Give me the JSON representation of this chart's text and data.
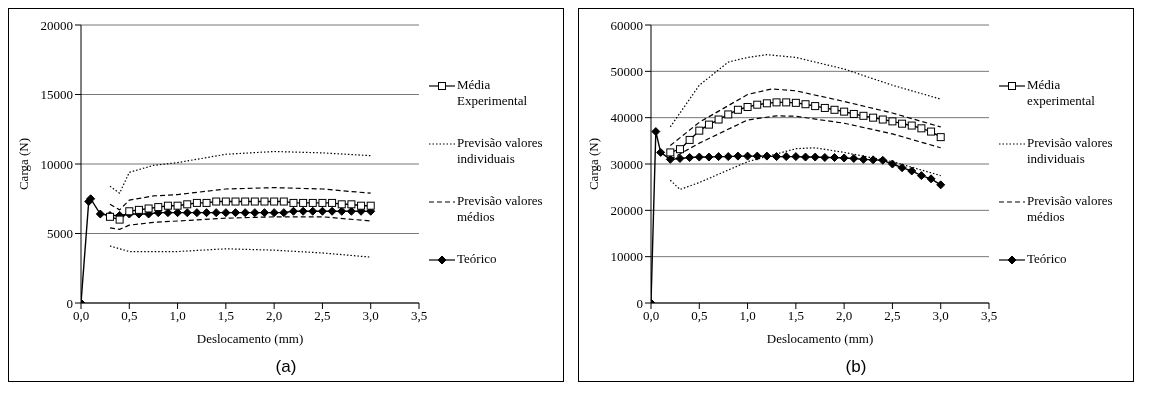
{
  "chart_data": [
    {
      "type": "line",
      "xlabel": "Deslocamento (mm)",
      "ylabel": "Carga (N)",
      "xlim": [
        0,
        3.5
      ],
      "xticks": [
        {
          "value": 0,
          "label": "0,0"
        },
        {
          "value": 0.5,
          "label": "0,5"
        },
        {
          "value": 1,
          "label": "1,0"
        },
        {
          "value": 1.5,
          "label": "1,5"
        },
        {
          "value": 2,
          "label": "2,0"
        },
        {
          "value": 2.5,
          "label": "2,5"
        },
        {
          "value": 3,
          "label": "3,0"
        },
        {
          "value": 3.5,
          "label": "3,5"
        }
      ],
      "ylim": [
        0,
        20000
      ],
      "yticks": [
        0,
        5000,
        10000,
        15000,
        20000
      ],
      "grid": "y",
      "legend": "right",
      "annotations": [
        "(a)"
      ],
      "series": [
        {
          "name": "Média Experimental",
          "color": "#000000",
          "marker": "square",
          "line_style": "solid",
          "x": [
            0.3,
            0.4,
            0.5,
            0.6,
            0.7,
            0.8,
            0.9,
            1.0,
            1.1,
            1.2,
            1.3,
            1.4,
            1.5,
            1.6,
            1.7,
            1.8,
            1.9,
            2.0,
            2.1,
            2.2,
            2.3,
            2.4,
            2.5,
            2.6,
            2.7,
            2.8,
            2.9,
            3.0
          ],
          "values": [
            6200,
            6000,
            6600,
            6700,
            6800,
            6900,
            7000,
            7000,
            7100,
            7200,
            7200,
            7300,
            7300,
            7300,
            7300,
            7300,
            7300,
            7300,
            7300,
            7200,
            7200,
            7200,
            7200,
            7200,
            7100,
            7100,
            7000,
            7000
          ]
        },
        {
          "name": "Previsão valores individuais",
          "color": "#000000",
          "marker": "none",
          "line_style": "dotted",
          "x": [
            0.3,
            0.4,
            0.5,
            0.75,
            1.0,
            1.5,
            2.0,
            2.5,
            3.0
          ],
          "values": [
            8400,
            7900,
            9400,
            9900,
            10100,
            10700,
            10900,
            10800,
            10600
          ]
        },
        {
          "color": "#000000",
          "marker": "none",
          "line_style": "dotted",
          "x": [
            0.3,
            0.4,
            0.5,
            0.75,
            1.0,
            1.5,
            2.0,
            2.5,
            3.0
          ],
          "values": [
            4100,
            3900,
            3700,
            3700,
            3700,
            3900,
            3800,
            3600,
            3300
          ]
        },
        {
          "name": "Previsão valores médios",
          "color": "#000000",
          "marker": "none",
          "line_style": "dashed",
          "x": [
            0.3,
            0.4,
            0.5,
            0.75,
            1.0,
            1.5,
            2.0,
            2.5,
            3.0
          ],
          "values": [
            7100,
            6700,
            7400,
            7700,
            7800,
            8200,
            8300,
            8200,
            7900
          ]
        },
        {
          "color": "#000000",
          "marker": "none",
          "line_style": "dashed",
          "x": [
            0.3,
            0.4,
            0.5,
            0.75,
            1.0,
            1.5,
            2.0,
            2.5,
            3.0
          ],
          "values": [
            5400,
            5300,
            5600,
            5800,
            5900,
            6100,
            6200,
            6200,
            5900
          ]
        },
        {
          "name": "Teórico",
          "color": "#000000",
          "marker": "diamond",
          "line_style": "solid",
          "x": [
            0,
            0.08,
            0.1,
            0.2,
            0.3,
            0.4,
            0.5,
            0.6,
            0.7,
            0.8,
            0.9,
            1.0,
            1.1,
            1.2,
            1.3,
            1.4,
            1.5,
            1.6,
            1.7,
            1.8,
            1.9,
            2.0,
            2.1,
            2.2,
            2.3,
            2.4,
            2.5,
            2.6,
            2.7,
            2.8,
            2.9,
            3.0
          ],
          "values": [
            0,
            7300,
            7500,
            6400,
            6300,
            6300,
            6400,
            6400,
            6400,
            6500,
            6500,
            6500,
            6500,
            6500,
            6500,
            6500,
            6500,
            6500,
            6500,
            6500,
            6500,
            6500,
            6500,
            6600,
            6600,
            6600,
            6600,
            6600,
            6600,
            6600,
            6600,
            6600
          ]
        }
      ]
    },
    {
      "type": "line",
      "xlabel": "Deslocamento (mm)",
      "ylabel": "Carga (N)",
      "xlim": [
        0,
        3.5
      ],
      "xticks": [
        {
          "value": 0,
          "label": "0,0"
        },
        {
          "value": 0.5,
          "label": "0,5"
        },
        {
          "value": 1,
          "label": "1,0"
        },
        {
          "value": 1.5,
          "label": "1,5"
        },
        {
          "value": 2,
          "label": "2,0"
        },
        {
          "value": 2.5,
          "label": "2,5"
        },
        {
          "value": 3,
          "label": "3,0"
        },
        {
          "value": 3.5,
          "label": "3,5"
        }
      ],
      "ylim": [
        0,
        60000
      ],
      "yticks": [
        0,
        10000,
        20000,
        30000,
        40000,
        50000,
        60000
      ],
      "grid": "y",
      "legend": "right",
      "annotations": [
        "(b)"
      ],
      "series": [
        {
          "name": "Média experimental",
          "color": "#000000",
          "marker": "square",
          "line_style": "solid",
          "x": [
            0.2,
            0.3,
            0.4,
            0.5,
            0.6,
            0.7,
            0.8,
            0.9,
            1.0,
            1.1,
            1.2,
            1.3,
            1.4,
            1.5,
            1.6,
            1.7,
            1.8,
            1.9,
            2.0,
            2.1,
            2.2,
            2.3,
            2.4,
            2.5,
            2.6,
            2.7,
            2.8,
            2.9,
            3.0
          ],
          "values": [
            32500,
            33200,
            35200,
            37200,
            38500,
            39600,
            40700,
            41700,
            42300,
            42800,
            43100,
            43300,
            43300,
            43200,
            42900,
            42500,
            42100,
            41700,
            41300,
            40800,
            40400,
            40000,
            39600,
            39200,
            38700,
            38300,
            37700,
            37000,
            35800
          ]
        },
        {
          "name": "Previsão valores individuais",
          "color": "#000000",
          "marker": "none",
          "line_style": "dotted",
          "x": [
            0.2,
            0.5,
            0.8,
            1.0,
            1.2,
            1.5,
            2.0,
            2.5,
            3.0
          ],
          "values": [
            38000,
            47000,
            52000,
            53000,
            53600,
            53000,
            50500,
            47000,
            44000
          ]
        },
        {
          "color": "#000000",
          "marker": "none",
          "line_style": "dotted",
          "x": [
            0.2,
            0.3,
            0.5,
            1.0,
            1.5,
            1.7,
            2.0,
            2.5,
            3.0
          ],
          "values": [
            26500,
            24500,
            26000,
            30500,
            33300,
            33500,
            32500,
            30500,
            27500
          ]
        },
        {
          "name": "Previsão valores médios",
          "color": "#000000",
          "marker": "none",
          "line_style": "dashed",
          "x": [
            0.2,
            0.5,
            1.0,
            1.25,
            1.5,
            2.0,
            2.5,
            3.0
          ],
          "values": [
            34000,
            39000,
            45000,
            46200,
            45800,
            43500,
            41000,
            38000
          ]
        },
        {
          "color": "#000000",
          "marker": "none",
          "line_style": "dashed",
          "x": [
            0.2,
            0.5,
            1.0,
            1.3,
            1.5,
            2.0,
            2.5,
            3.0
          ],
          "values": [
            31000,
            34500,
            39500,
            40400,
            40300,
            38800,
            36500,
            33500
          ]
        },
        {
          "name": "Teórico",
          "color": "#000000",
          "marker": "diamond",
          "line_style": "solid",
          "x": [
            0,
            0.05,
            0.1,
            0.2,
            0.3,
            0.4,
            0.5,
            0.6,
            0.7,
            0.8,
            0.9,
            1.0,
            1.1,
            1.2,
            1.3,
            1.4,
            1.5,
            1.6,
            1.7,
            1.8,
            1.9,
            2.0,
            2.1,
            2.2,
            2.3,
            2.4,
            2.5,
            2.6,
            2.7,
            2.8,
            2.9,
            3.0
          ],
          "values": [
            0,
            37000,
            32500,
            31000,
            31200,
            31400,
            31500,
            31500,
            31600,
            31600,
            31700,
            31700,
            31700,
            31700,
            31600,
            31600,
            31600,
            31500,
            31500,
            31400,
            31400,
            31300,
            31200,
            31000,
            30900,
            30800,
            30000,
            29200,
            28500,
            27500,
            26800,
            25500
          ]
        }
      ]
    }
  ]
}
